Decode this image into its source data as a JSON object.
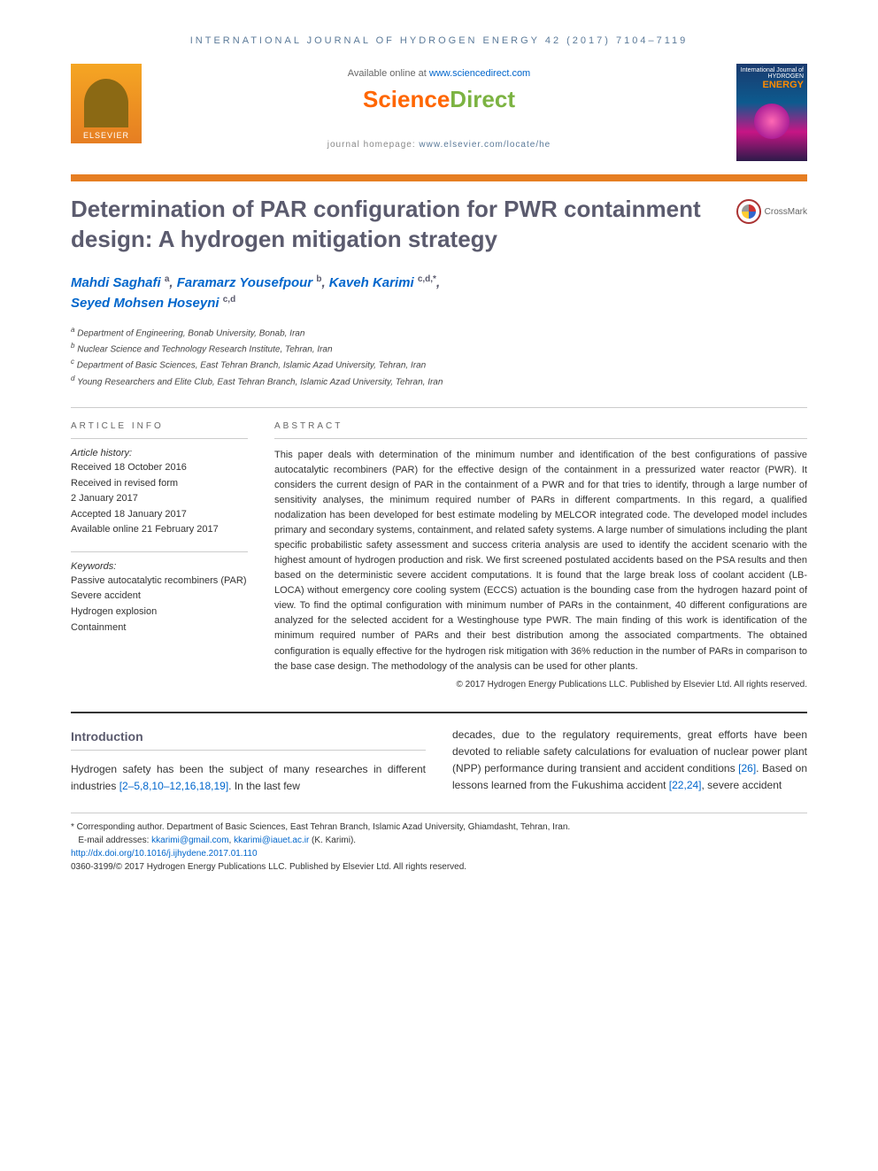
{
  "journal_header": "INTERNATIONAL JOURNAL OF HYDROGEN ENERGY 42 (2017) 7104–7119",
  "available_online_prefix": "Available online at ",
  "available_online_link": "www.sciencedirect.com",
  "sciencedirect": {
    "part1": "Science",
    "part2": "Direct"
  },
  "journal_homepage_prefix": "journal homepage: ",
  "journal_homepage_link": "www.elsevier.com/locate/he",
  "elsevier_label": "ELSEVIER",
  "cover": {
    "line1": "International Journal of",
    "line2": "HYDROGEN",
    "line3": "ENERGY"
  },
  "crossmark_label": "CrossMark",
  "title": "Determination of PAR configuration for PWR containment design: A hydrogen mitigation strategy",
  "authors": [
    {
      "name": "Mahdi Saghafi",
      "aff": "a"
    },
    {
      "name": "Faramarz Yousefpour",
      "aff": "b"
    },
    {
      "name": "Kaveh Karimi",
      "aff": "c,d,*"
    },
    {
      "name": "Seyed Mohsen Hoseyni",
      "aff": "c,d"
    }
  ],
  "affiliations": [
    {
      "sup": "a",
      "text": "Department of Engineering, Bonab University, Bonab, Iran"
    },
    {
      "sup": "b",
      "text": "Nuclear Science and Technology Research Institute, Tehran, Iran"
    },
    {
      "sup": "c",
      "text": "Department of Basic Sciences, East Tehran Branch, Islamic Azad University, Tehran, Iran"
    },
    {
      "sup": "d",
      "text": "Young Researchers and Elite Club, East Tehran Branch, Islamic Azad University, Tehran, Iran"
    }
  ],
  "article_info_heading": "ARTICLE INFO",
  "history_label": "Article history:",
  "history": [
    "Received 18 October 2016",
    "Received in revised form",
    "2 January 2017",
    "Accepted 18 January 2017",
    "Available online 21 February 2017"
  ],
  "keywords_label": "Keywords:",
  "keywords": [
    "Passive autocatalytic recombiners (PAR)",
    "Severe accident",
    "Hydrogen explosion",
    "Containment"
  ],
  "abstract_heading": "ABSTRACT",
  "abstract_text": "This paper deals with determination of the minimum number and identification of the best configurations of passive autocatalytic recombiners (PAR) for the effective design of the containment in a pressurized water reactor (PWR). It considers the current design of PAR in the containment of a PWR and for that tries to identify, through a large number of sensitivity analyses, the minimum required number of PARs in different compartments. In this regard, a qualified nodalization has been developed for best estimate modeling by MELCOR integrated code. The developed model includes primary and secondary systems, containment, and related safety systems. A large number of simulations including the plant specific probabilistic safety assessment and success criteria analysis are used to identify the accident scenario with the highest amount of hydrogen production and risk. We first screened postulated accidents based on the PSA results and then based on the deterministic severe accident computations. It is found that the large break loss of coolant accident (LB-LOCA) without emergency core cooling system (ECCS) actuation is the bounding case from the hydrogen hazard point of view. To find the optimal configuration with minimum number of PARs in the containment, 40 different configurations are analyzed for the selected accident for a Westinghouse type PWR. The main finding of this work is identification of the minimum required number of PARs and their best distribution among the associated compartments. The obtained configuration is equally effective for the hydrogen risk mitigation with 36% reduction in the number of PARs in comparison to the base case design. The methodology of the analysis can be used for other plants.",
  "abstract_copyright": "© 2017 Hydrogen Energy Publications LLC. Published by Elsevier Ltd. All rights reserved.",
  "intro_heading": "Introduction",
  "intro_col1_prefix": "Hydrogen safety has been the subject of many researches in different industries ",
  "intro_col1_refs": "[2–5,8,10–12,16,18,19]",
  "intro_col1_suffix": ". In the last few",
  "intro_col2_part1": "decades, due to the regulatory requirements, great efforts have been devoted to reliable safety calculations for evaluation of nuclear power plant (NPP) performance during transient and accident conditions ",
  "intro_col2_ref1": "[26]",
  "intro_col2_part2": ". Based on lessons learned from the Fukushima accident ",
  "intro_col2_ref2": "[22,24]",
  "intro_col2_part3": ", severe accident",
  "footer": {
    "corresponding": "* Corresponding author. Department of Basic Sciences, East Tehran Branch, Islamic Azad University, Ghiamdasht, Tehran, Iran.",
    "email_label": "E-mail addresses: ",
    "email1": "kkarimi@gmail.com",
    "email_sep": ", ",
    "email2": "kkarimi@iauet.ac.ir",
    "email_suffix": " (K. Karimi).",
    "doi": "http://dx.doi.org/10.1016/j.ijhydene.2017.01.110",
    "issn_copyright": "0360-3199/© 2017 Hydrogen Energy Publications LLC. Published by Elsevier Ltd. All rights reserved."
  }
}
